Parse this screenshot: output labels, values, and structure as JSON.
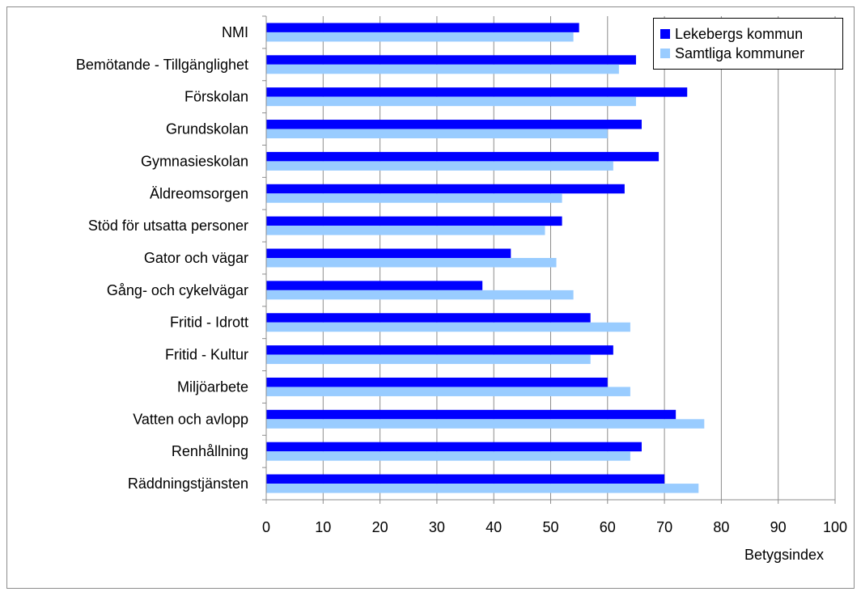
{
  "chart_data": {
    "type": "bar",
    "orientation": "horizontal",
    "categories": [
      "NMI",
      "Bemötande - Tillgänglighet",
      "Förskolan",
      "Grundskolan",
      "Gymnasieskolan",
      "Äldreomsorgen",
      "Stöd för utsatta personer",
      "Gator och vägar",
      "Gång- och cykelvägar",
      "Fritid - Idrott",
      "Fritid - Kultur",
      "Miljöarbete",
      "Vatten och avlopp",
      "Renhållning",
      "Räddningstjänsten"
    ],
    "series": [
      {
        "name": "Lekebergs kommun",
        "color": "#0000ff",
        "values": [
          55,
          65,
          74,
          66,
          69,
          63,
          52,
          43,
          38,
          57,
          61,
          60,
          72,
          66,
          70
        ]
      },
      {
        "name": "Samtliga kommuner",
        "color": "#99ccff",
        "values": [
          54,
          62,
          65,
          60,
          61,
          52,
          49,
          51,
          54,
          64,
          57,
          64,
          77,
          64,
          76
        ]
      }
    ],
    "xlim": [
      0,
      100
    ],
    "xticks": [
      "0",
      "10",
      "20",
      "30",
      "40",
      "50",
      "60",
      "70",
      "80",
      "90",
      "100"
    ],
    "xlabel": "Betygsindex",
    "ylabel": "",
    "title": "",
    "grid": "vertical",
    "legend_position": "top-right"
  }
}
